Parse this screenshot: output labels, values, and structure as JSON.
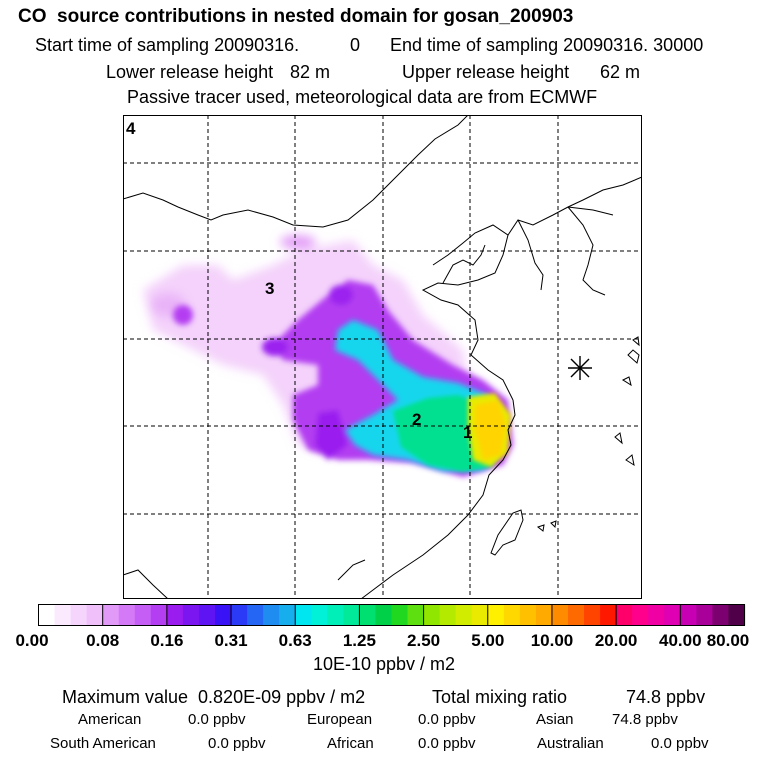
{
  "header": {
    "title": "CO  source contributions in nested domain for gosan_200903",
    "start_label": "Start time of sampling 20090316.",
    "start_value": "0",
    "end_label": "End time of sampling 20090316. 30000",
    "lower_label": "Lower release height",
    "lower_value": "82 m",
    "upper_label": "Upper release height",
    "upper_value": "62 m",
    "info": "Passive tracer used, meteorological data are from ECMWF"
  },
  "chart_data": {
    "type": "heatmap",
    "title": "CO  source contributions in nested domain for gosan_200903",
    "units": "10E-10 ppbv / m2",
    "colorbar_ticks": [
      "0.00",
      "0.08",
      "0.16",
      "0.31",
      "0.63",
      "1.25",
      "2.50",
      "5.00",
      "10.00",
      "20.00",
      "40.00",
      "80.00"
    ],
    "colorbar_colors": [
      "#ffffff",
      "#fbeafe",
      "#f6d5fd",
      "#f0c0fb",
      "#e29af8",
      "#d57af6",
      "#c45ef4",
      "#b43ef2",
      "#9a1cef",
      "#7c16f0",
      "#5e14f3",
      "#3a12f6",
      "#2a3af6",
      "#2566f4",
      "#1f8cf1",
      "#16aeed",
      "#00e6f0",
      "#00f0d8",
      "#00eeb8",
      "#00ea9a",
      "#00e070",
      "#00d048",
      "#20d820",
      "#5ee010",
      "#90e600",
      "#b4ea00",
      "#d2ec00",
      "#eaea00",
      "#fff000",
      "#ffd800",
      "#ffc000",
      "#ffaa00",
      "#ff8c00",
      "#ff6a00",
      "#ff4400",
      "#ff1800",
      "#ff006a",
      "#ff008c",
      "#f000a4",
      "#de00b2",
      "#c800b4",
      "#a80098",
      "#7c0070",
      "#500048"
    ],
    "map_labels": [
      "4",
      "3",
      "2",
      "1"
    ],
    "station_marker": "gosan"
  },
  "footer": {
    "max_label": "Maximum value  0.820E-09 ppbv / m2",
    "total_label": "Total mixing ratio",
    "total_value": "74.8 ppbv",
    "rows": [
      [
        {
          "name": "American",
          "value": "0.0 ppbv"
        },
        {
          "name": "European",
          "value": "0.0 ppbv"
        },
        {
          "name": "Asian",
          "value": "74.8 ppbv"
        }
      ],
      [
        {
          "name": "South American",
          "value": "0.0 ppbv"
        },
        {
          "name": "African",
          "value": "0.0 ppbv"
        },
        {
          "name": "Australian",
          "value": "0.0 ppbv"
        }
      ]
    ]
  }
}
